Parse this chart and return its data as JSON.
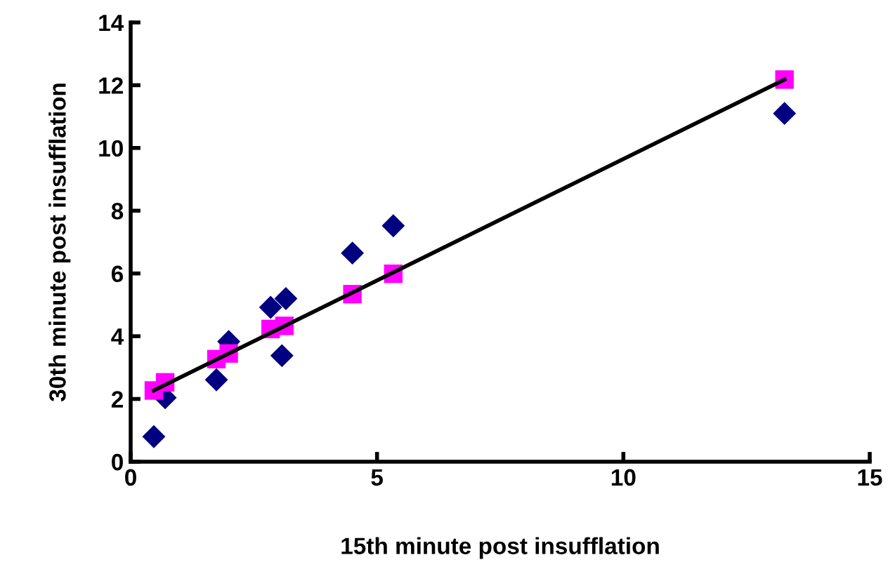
{
  "chart_data": {
    "type": "scatter",
    "xlabel": "15th minute post insufflation",
    "ylabel": "30th minute post insufflation",
    "xlim": [
      0,
      15
    ],
    "xticks": [
      0,
      5,
      10,
      15
    ],
    "ylim": [
      0,
      14
    ],
    "yticks": [
      0,
      2,
      4,
      6,
      8,
      10,
      12,
      14
    ],
    "grid": false,
    "legend": false,
    "series": [
      {
        "marker": "diamond",
        "color": "#000080",
        "x": [
          0.47,
          0.7,
          1.74,
          1.99,
          2.84,
          3.15,
          3.07,
          4.5,
          5.33,
          13.27
        ],
        "values": [
          0.8,
          2.04,
          2.61,
          3.83,
          4.92,
          5.2,
          3.38,
          6.65,
          7.52,
          11.1
        ]
      },
      {
        "type": "scatter",
        "marker": "square",
        "color": "#ff00ff",
        "x": [
          0.47,
          0.7,
          1.74,
          1.99,
          2.84,
          3.12,
          4.5,
          5.33,
          13.27
        ],
        "values": [
          2.27,
          2.53,
          3.27,
          3.45,
          4.23,
          4.33,
          5.34,
          5.99,
          12.18
        ]
      },
      {
        "type": "line",
        "marker": "none",
        "color": "#000000",
        "x": [
          0.47,
          13.27
        ],
        "values": [
          2.27,
          12.18
        ]
      }
    ]
  }
}
